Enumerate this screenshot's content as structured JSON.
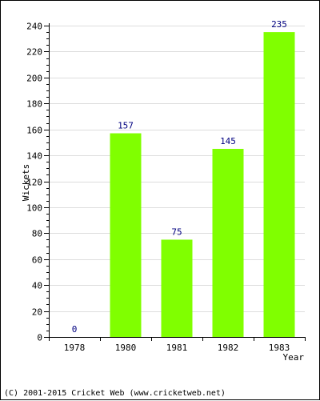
{
  "chart_data": {
    "type": "bar",
    "categories": [
      "1978",
      "1980",
      "1981",
      "1982",
      "1983"
    ],
    "values": [
      0,
      157,
      75,
      145,
      235
    ],
    "xlabel": "Year",
    "ylabel": "Wickets",
    "ylim": [
      0,
      240
    ],
    "y_major_step": 20,
    "y_minor_step": 5,
    "grid": true,
    "bar_color": "#80ff00",
    "label_color": "#000080",
    "grid_color": "#dddddd"
  },
  "footer": {
    "copyright": "(C) 2001-2015 Cricket Web (www.cricketweb.net)"
  }
}
